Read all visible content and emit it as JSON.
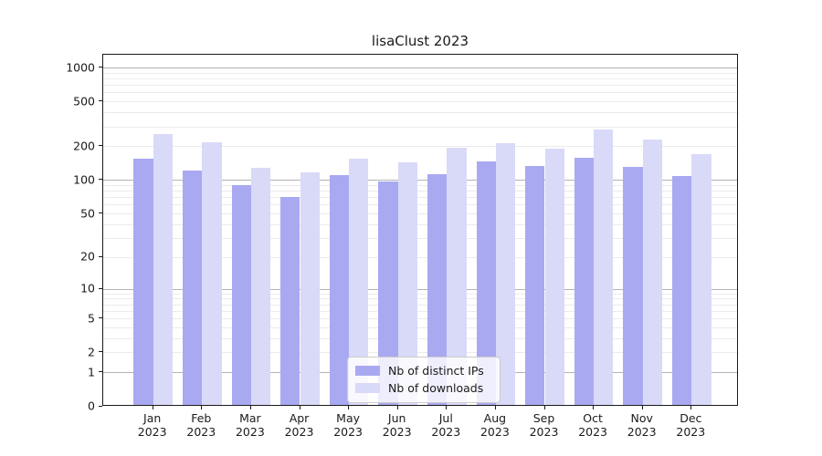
{
  "title": "lisaClust 2023",
  "chart_data": {
    "type": "bar",
    "title": "lisaClust 2023",
    "scale": "log1p",
    "grid": true,
    "legend_position": "lower center",
    "categories": [
      "Jan",
      "Feb",
      "Mar",
      "Apr",
      "May",
      "Jun",
      "Jul",
      "Aug",
      "Sep",
      "Oct",
      "Nov",
      "Dec"
    ],
    "year_label": "2023",
    "series": [
      {
        "name": "Nb of distinct IPs",
        "color": "#a9a9f2",
        "values": [
          150,
          117,
          87,
          68,
          107,
          94,
          108,
          140,
          128,
          153,
          127,
          105
        ]
      },
      {
        "name": "Nb of downloads",
        "color": "#d9d9f8",
        "values": [
          248,
          210,
          123,
          112,
          148,
          138,
          186,
          204,
          183,
          270,
          220,
          165
        ]
      }
    ],
    "yticks": [
      0,
      1,
      2,
      5,
      10,
      20,
      50,
      100,
      200,
      500,
      1000
    ],
    "ylim": [
      0,
      1300
    ],
    "xlabel": "",
    "ylabel": "",
    "style": {
      "grid_major_color": "#b3b3b3",
      "grid_minor_color": "#ebebeb",
      "axis_color": "#1a1a1a",
      "legend_border_color": "#cccccc"
    }
  }
}
